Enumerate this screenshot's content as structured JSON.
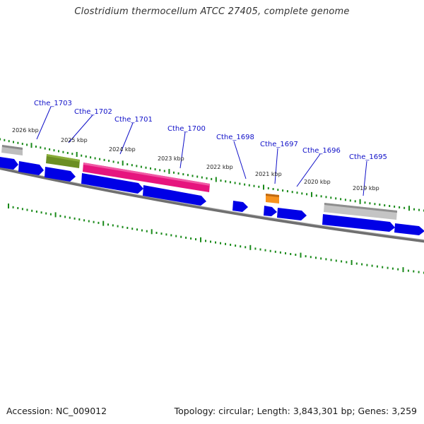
{
  "title": "Clostridium thermocellum ATCC 27405, complete genome",
  "footer": {
    "accession": "Accession: NC_009012",
    "summary": "Topology: circular; Length: 3,843,301 bp; Genes: 3,259"
  },
  "gene_labels": [
    "Cthe_1703",
    "Cthe_1702",
    "Cthe_1701",
    "Cthe_1700",
    "Cthe_1698",
    "Cthe_1697",
    "Cthe_1696",
    "Cthe_1695"
  ],
  "kbp_labels": [
    "2026 kbp",
    "2025 kbp",
    "2024 kbp",
    "2023 kbp",
    "2022 kbp",
    "2021 kbp",
    "2020 kbp",
    "2019 kbp"
  ],
  "colors": {
    "backbone": "#808080",
    "cds_arrow": "#0000e6",
    "tick": "#1a8a1a",
    "label": "#1010c8",
    "grey_feature": "#b4b4b4",
    "olive_feature": "#6b8e23",
    "pink_feature": "#e6157e",
    "orange_feature": "#f7931e"
  }
}
